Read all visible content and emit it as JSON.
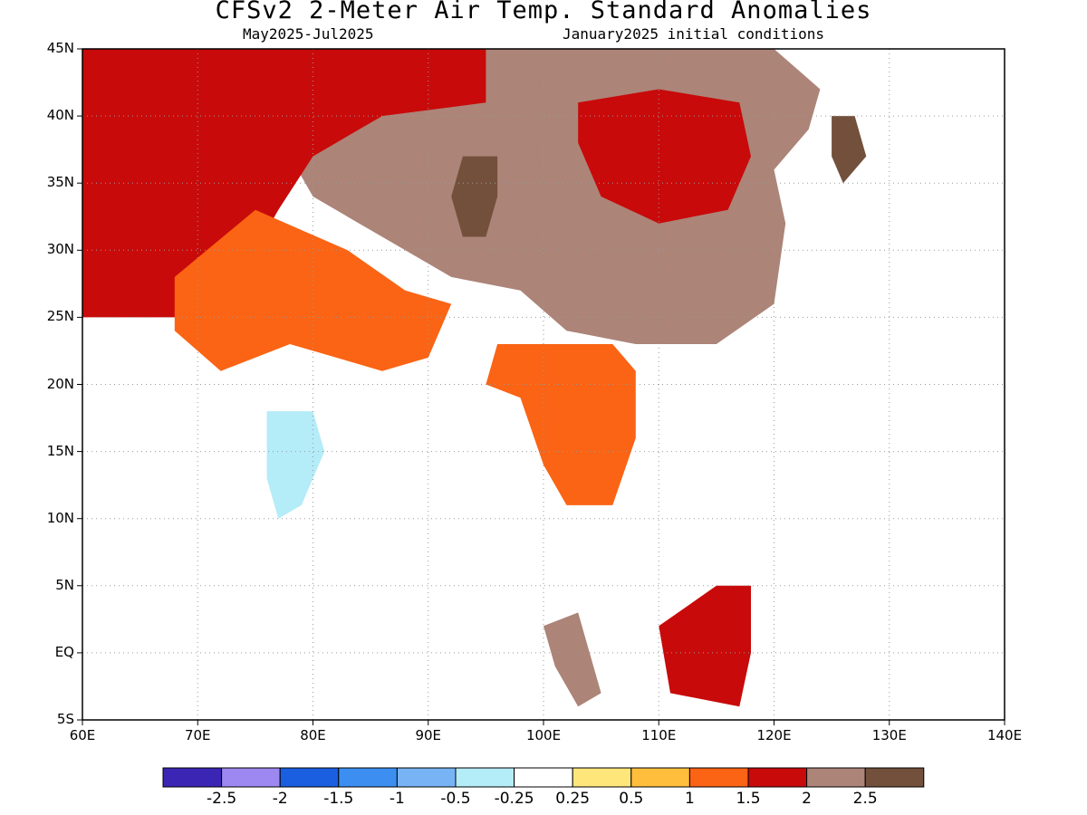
{
  "header": {
    "title": "CFSv2 2-Meter Air Temp. Standard Anomalies",
    "period": "May2025-Jul2025",
    "init": "January2025 initial conditions"
  },
  "axes": {
    "lat_labels": [
      "45N",
      "40N",
      "35N",
      "30N",
      "25N",
      "20N",
      "15N",
      "10N",
      "5N",
      "EQ",
      "5S"
    ],
    "lat_values": [
      45,
      40,
      35,
      30,
      25,
      20,
      15,
      10,
      5,
      0,
      -5
    ],
    "lon_labels": [
      "60E",
      "70E",
      "80E",
      "90E",
      "100E",
      "110E",
      "120E",
      "130E",
      "140E"
    ],
    "lon_values": [
      60,
      70,
      80,
      90,
      100,
      110,
      120,
      130,
      140
    ]
  },
  "legend": {
    "labels": [
      "-2.5",
      "-2",
      "-1.5",
      "-1",
      "-0.5",
      "-0.25",
      "0.25",
      "0.5",
      "1",
      "1.5",
      "2",
      "2.5"
    ],
    "colors": [
      "#3b25b4",
      "#9d87f0",
      "#1a5fe0",
      "#3c8ff0",
      "#78b4f5",
      "#b4ecf8",
      "#ffffff",
      "#ffe67a",
      "#ffbe3c",
      "#fa6414",
      "#c80a0a",
      "#ac8478",
      "#73503c"
    ]
  },
  "map_data": {
    "extent": {
      "lon": [
        60,
        140
      ],
      "lat": [
        -5,
        45
      ]
    },
    "regions": [
      {
        "id": "china-plateau",
        "level": 2.0,
        "poly": [
          [
            92,
            45
          ],
          [
            120,
            45
          ],
          [
            124,
            42
          ],
          [
            123,
            39
          ],
          [
            120,
            36
          ],
          [
            121,
            32
          ],
          [
            120,
            26
          ],
          [
            115,
            23
          ],
          [
            108,
            23
          ],
          [
            102,
            24
          ],
          [
            98,
            27
          ],
          [
            92,
            28
          ],
          [
            88,
            30
          ],
          [
            84,
            32
          ],
          [
            80,
            34
          ],
          [
            78,
            37
          ],
          [
            82,
            40
          ],
          [
            88,
            43
          ]
        ]
      },
      {
        "id": "central-china-warm",
        "level": 1.5,
        "poly": [
          [
            103,
            41
          ],
          [
            110,
            42
          ],
          [
            117,
            41
          ],
          [
            118,
            37
          ],
          [
            116,
            33
          ],
          [
            110,
            32
          ],
          [
            105,
            34
          ],
          [
            103,
            38
          ]
        ]
      },
      {
        "id": "tibet-core",
        "level": 2.5,
        "poly": [
          [
            93,
            37
          ],
          [
            96,
            37
          ],
          [
            96,
            34
          ],
          [
            95,
            31
          ],
          [
            93,
            31
          ],
          [
            92,
            34
          ]
        ]
      },
      {
        "id": "korea-north",
        "level": 2.5,
        "poly": [
          [
            125,
            40
          ],
          [
            127,
            40
          ],
          [
            128,
            37
          ],
          [
            126,
            35
          ],
          [
            125,
            37
          ]
        ]
      },
      {
        "id": "west-asia",
        "level": 1.5,
        "poly": [
          [
            60,
            45
          ],
          [
            95,
            45
          ],
          [
            95,
            41
          ],
          [
            86,
            40
          ],
          [
            80,
            37
          ],
          [
            77,
            33
          ],
          [
            73,
            27
          ],
          [
            68,
            25
          ],
          [
            60,
            25
          ]
        ]
      },
      {
        "id": "india-north-warm",
        "level": 1.0,
        "poly": [
          [
            68,
            28
          ],
          [
            75,
            33
          ],
          [
            83,
            30
          ],
          [
            88,
            27
          ],
          [
            92,
            26
          ],
          [
            90,
            22
          ],
          [
            86,
            21
          ],
          [
            78,
            23
          ],
          [
            72,
            21
          ],
          [
            68,
            24
          ]
        ]
      },
      {
        "id": "indochina-warm",
        "level": 1.0,
        "poly": [
          [
            96,
            23
          ],
          [
            106,
            23
          ],
          [
            108,
            21
          ],
          [
            108,
            16
          ],
          [
            106,
            11
          ],
          [
            102,
            11
          ],
          [
            100,
            14
          ],
          [
            98,
            19
          ],
          [
            95,
            20
          ]
        ]
      },
      {
        "id": "india-cool",
        "level": -0.5,
        "poly": [
          [
            76,
            18
          ],
          [
            80,
            18
          ],
          [
            81,
            15
          ],
          [
            79,
            11
          ],
          [
            77,
            10
          ],
          [
            76,
            13
          ]
        ]
      },
      {
        "id": "borneo-warm",
        "level": 1.5,
        "poly": [
          [
            110,
            2
          ],
          [
            115,
            5
          ],
          [
            118,
            5
          ],
          [
            118,
            0
          ],
          [
            117,
            -4
          ],
          [
            111,
            -3
          ]
        ]
      },
      {
        "id": "sumatra-warm",
        "level": 2.0,
        "poly": [
          [
            100,
            2
          ],
          [
            103,
            3
          ],
          [
            104,
            0
          ],
          [
            105,
            -3
          ],
          [
            103,
            -4
          ],
          [
            101,
            -1
          ]
        ]
      }
    ]
  }
}
